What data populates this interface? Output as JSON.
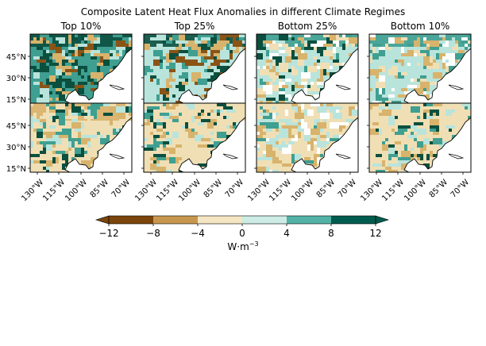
{
  "figure": {
    "title": "Composite Latent Heat Flux Anomalies in different Climate Regimes",
    "columns": [
      "Top 10%",
      "Top 25%",
      "Bottom 25%",
      "Bottom 10%"
    ],
    "lat_labels": [
      "45°N",
      "30°N",
      "15°N"
    ],
    "lon_labels": [
      "130°W",
      "115°W",
      "100°W",
      "85°W",
      "70°W"
    ],
    "colorbar": {
      "ticks": [
        "−12",
        "−8",
        "−4",
        "0",
        "4",
        "8",
        "12"
      ],
      "label": "W·m",
      "label_exp": "−3",
      "bins": [
        "#7b450c",
        "#c8974f",
        "#f5e6c3",
        "#cdece5",
        "#52b2a6",
        "#005c4e"
      ],
      "extend": "both"
    }
  },
  "map_regions": {
    "map_type": "composite anomaly maps of North America (4 columns × 2 rows)",
    "colors": {
      "strong_pos": "#0b4f3f",
      "mid_pos": "#3f9f91",
      "weak_pos": "#b9e4dc",
      "weak_neg": "#f0dfb4",
      "mid_neg": "#d8b36c",
      "strong_neg": "#8a5416",
      "coast": "#000000"
    }
  }
}
